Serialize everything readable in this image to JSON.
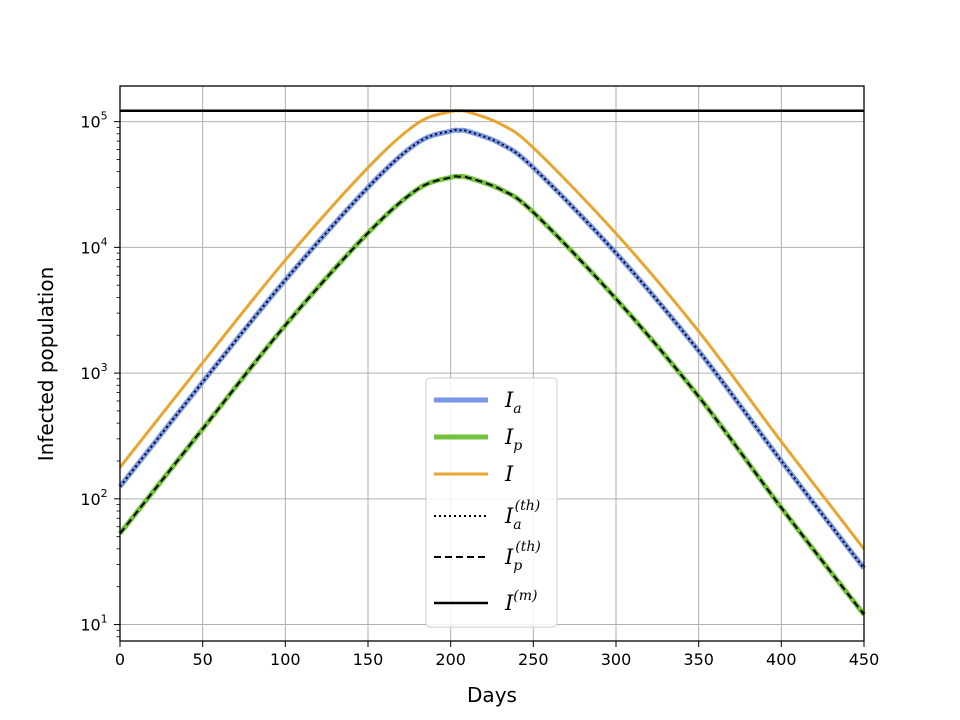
{
  "chart_data": {
    "type": "line",
    "xlabel": "Days",
    "ylabel": "Infected population",
    "xlim": [
      0,
      450
    ],
    "ylim": [
      7.4,
      192000
    ],
    "yscale": "log",
    "grid": true,
    "legend_position": "lower center",
    "x_ticks": [
      "0",
      "50",
      "100",
      "150",
      "200",
      "250",
      "300",
      "350",
      "400",
      "450"
    ],
    "y_ticks": [
      {
        "value": 10,
        "base": "10",
        "exp": "1"
      },
      {
        "value": 100,
        "base": "10",
        "exp": "2"
      },
      {
        "value": 1000,
        "base": "10",
        "exp": "3"
      },
      {
        "value": 10000,
        "base": "10",
        "exp": "4"
      },
      {
        "value": 100000,
        "base": "10",
        "exp": "5"
      }
    ],
    "x": [
      0,
      50,
      100,
      150,
      180,
      200,
      205,
      210,
      230,
      250,
      300,
      350,
      400,
      450
    ],
    "series": [
      {
        "key": "Ia",
        "label_base": "I",
        "label_sub": "a",
        "label_sup": "",
        "color": "#7896e6",
        "style": "solid",
        "width": 5,
        "values": [
          125,
          850,
          5500,
          30000,
          68000,
          84000,
          85000,
          84000,
          67000,
          43000,
          9000,
          1500,
          200,
          28
        ]
      },
      {
        "key": "Ip",
        "label_base": "I",
        "label_sub": "p",
        "label_sup": "",
        "color": "#73c23c",
        "style": "solid",
        "width": 5,
        "values": [
          53,
          360,
          2400,
          13000,
          29000,
          36000,
          36500,
          36000,
          29000,
          19000,
          3900,
          650,
          85,
          12
        ]
      },
      {
        "key": "I",
        "label_base": "I",
        "label_sub": "",
        "label_sup": "",
        "color": "#e8a530",
        "style": "solid",
        "width": 3,
        "values": [
          178,
          1210,
          7900,
          43000,
          97000,
          120000,
          121500,
          120000,
          96000,
          62000,
          12900,
          2150,
          285,
          40
        ]
      },
      {
        "key": "Ia_th",
        "label_base": "I",
        "label_sub": "a",
        "label_sup": "(th)",
        "color": "#000000",
        "style": "dotted",
        "width": 2,
        "values": [
          125,
          850,
          5500,
          30000,
          68000,
          84000,
          85000,
          84000,
          67000,
          43000,
          9000,
          1500,
          200,
          28
        ]
      },
      {
        "key": "Ip_th",
        "label_base": "I",
        "label_sub": "p",
        "label_sup": "(th)",
        "color": "#000000",
        "style": "dashed",
        "width": 2,
        "values": [
          53,
          360,
          2400,
          13000,
          29000,
          36000,
          36500,
          36000,
          29000,
          19000,
          3900,
          650,
          85,
          12
        ]
      },
      {
        "key": "Im",
        "label_base": "I",
        "label_sub": "",
        "label_sup": "(m)",
        "color": "#000000",
        "style": "solid",
        "width": 2.5,
        "values": [
          122000,
          122000,
          122000,
          122000,
          122000,
          122000,
          122000,
          122000,
          122000,
          122000,
          122000,
          122000,
          122000,
          122000
        ]
      }
    ]
  }
}
